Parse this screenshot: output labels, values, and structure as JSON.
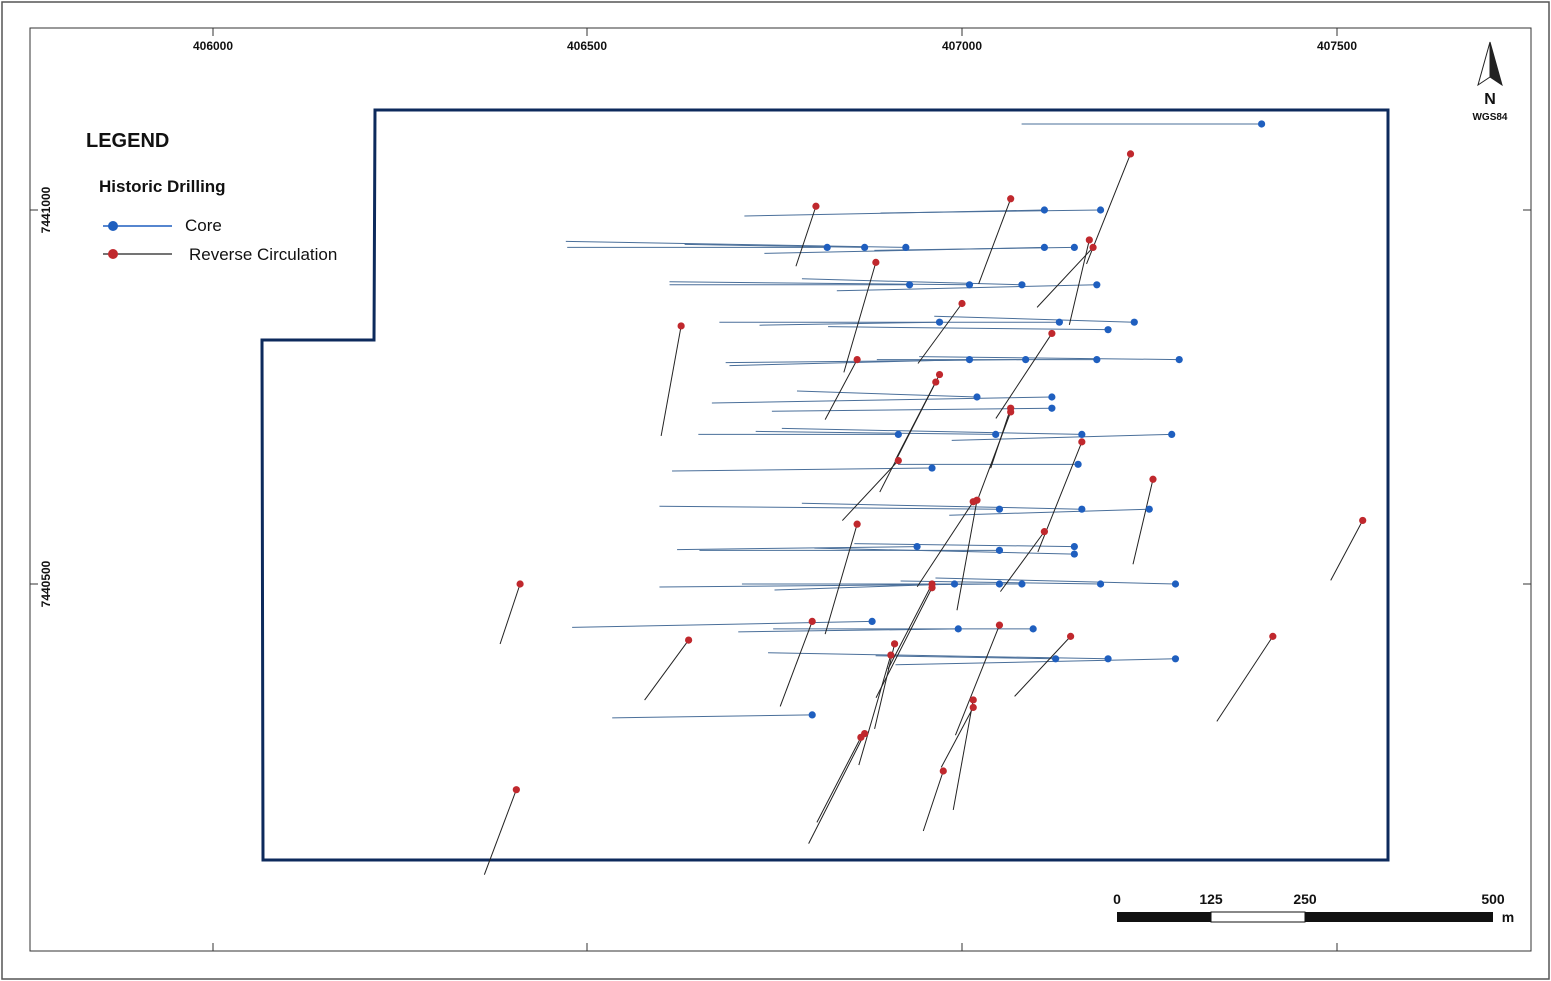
{
  "map": {
    "x_ticks": [
      "406000",
      "406500",
      "407000",
      "407500"
    ],
    "y_ticks": [
      "7441000",
      "7440500"
    ],
    "north_arrow": {
      "label": "N",
      "datum": "WGS84",
      "icon": "north-arrow-icon"
    },
    "colors": {
      "frame": "#333333",
      "tenement_boundary": "#0d2a5c",
      "core": "#1f5fbf",
      "core_trace": "#4a6f9a",
      "reverse_circulation": "#c0282d",
      "rc_trace": "#222222"
    }
  },
  "legend": {
    "title": "LEGEND",
    "subtitle": "Historic Drilling",
    "items": [
      {
        "label": "Core",
        "symbol": "core-collar-icon"
      },
      {
        "label": "Reverse Circulation",
        "symbol": "rc-collar-icon"
      }
    ]
  },
  "scale_bar": {
    "labels": [
      "0",
      "125",
      "250",
      "500"
    ],
    "unit": "m"
  },
  "chart_data": {
    "type": "map",
    "xlabel": "",
    "ylabel": "",
    "x_ticks": [
      406000,
      406500,
      407000,
      407500
    ],
    "y_ticks": [
      7441000,
      7440500
    ],
    "series": [
      {
        "name": "Core",
        "collars": [
          [
            407110,
            7441000
          ],
          [
            407185,
            7441000
          ],
          [
            406820,
            7440950
          ],
          [
            406870,
            7440950
          ],
          [
            406925,
            7440950
          ],
          [
            407110,
            7440950
          ],
          [
            407150,
            7440950
          ],
          [
            406930,
            7440900
          ],
          [
            407010,
            7440900
          ],
          [
            407080,
            7440900
          ],
          [
            407180,
            7440900
          ],
          [
            406970,
            7440850
          ],
          [
            407130,
            7440850
          ],
          [
            407195,
            7440840
          ],
          [
            407230,
            7440850
          ],
          [
            407010,
            7440800
          ],
          [
            407085,
            7440800
          ],
          [
            407180,
            7440800
          ],
          [
            407290,
            7440800
          ],
          [
            407020,
            7440750
          ],
          [
            407120,
            7440750
          ],
          [
            407120,
            7440735
          ],
          [
            406915,
            7440700
          ],
          [
            407045,
            7440700
          ],
          [
            407160,
            7440700
          ],
          [
            407280,
            7440700
          ],
          [
            406960,
            7440655
          ],
          [
            407155,
            7440660
          ],
          [
            407050,
            7440600
          ],
          [
            407160,
            7440600
          ],
          [
            407250,
            7440600
          ],
          [
            406940,
            7440550
          ],
          [
            407050,
            7440545
          ],
          [
            407150,
            7440550
          ],
          [
            407150,
            7440540
          ],
          [
            406990,
            7440500
          ],
          [
            407050,
            7440500
          ],
          [
            407080,
            7440500
          ],
          [
            407185,
            7440500
          ],
          [
            407285,
            7440500
          ],
          [
            406880,
            7440450
          ],
          [
            406995,
            7440440
          ],
          [
            407095,
            7440440
          ],
          [
            407125,
            7440400
          ],
          [
            407195,
            7440400
          ],
          [
            407285,
            7440400
          ],
          [
            406800,
            7440325
          ],
          [
            407400,
            7441115
          ]
        ]
      },
      {
        "name": "Reverse Circulation",
        "collars": [
          [
            406805,
            7441005
          ],
          [
            407065,
            7441015
          ],
          [
            407225,
            7441075
          ],
          [
            407175,
            7440950
          ],
          [
            407170,
            7440960
          ],
          [
            406885,
            7440930
          ],
          [
            407000,
            7440875
          ],
          [
            407120,
            7440835
          ],
          [
            406625,
            7440845
          ],
          [
            406860,
            7440800
          ],
          [
            406970,
            7440780
          ],
          [
            406965,
            7440770
          ],
          [
            407065,
            7440735
          ],
          [
            407065,
            7440730
          ],
          [
            407160,
            7440690
          ],
          [
            406915,
            7440665
          ],
          [
            407255,
            7440640
          ],
          [
            406860,
            7440580
          ],
          [
            407110,
            7440570
          ],
          [
            407015,
            7440610
          ],
          [
            407020,
            7440612
          ],
          [
            407535,
            7440585
          ],
          [
            406960,
            7440500
          ],
          [
            406960,
            7440495
          ],
          [
            406410,
            7440500
          ],
          [
            406800,
            7440450
          ],
          [
            407050,
            7440445
          ],
          [
            407145,
            7440430
          ],
          [
            406910,
            7440420
          ],
          [
            406905,
            7440405
          ],
          [
            406635,
            7440425
          ],
          [
            407415,
            7440430
          ],
          [
            407015,
            7440345
          ],
          [
            407015,
            7440335
          ],
          [
            406865,
            7440295
          ],
          [
            406870,
            7440300
          ],
          [
            406975,
            7440250
          ],
          [
            406405,
            7440225
          ]
        ]
      }
    ]
  }
}
